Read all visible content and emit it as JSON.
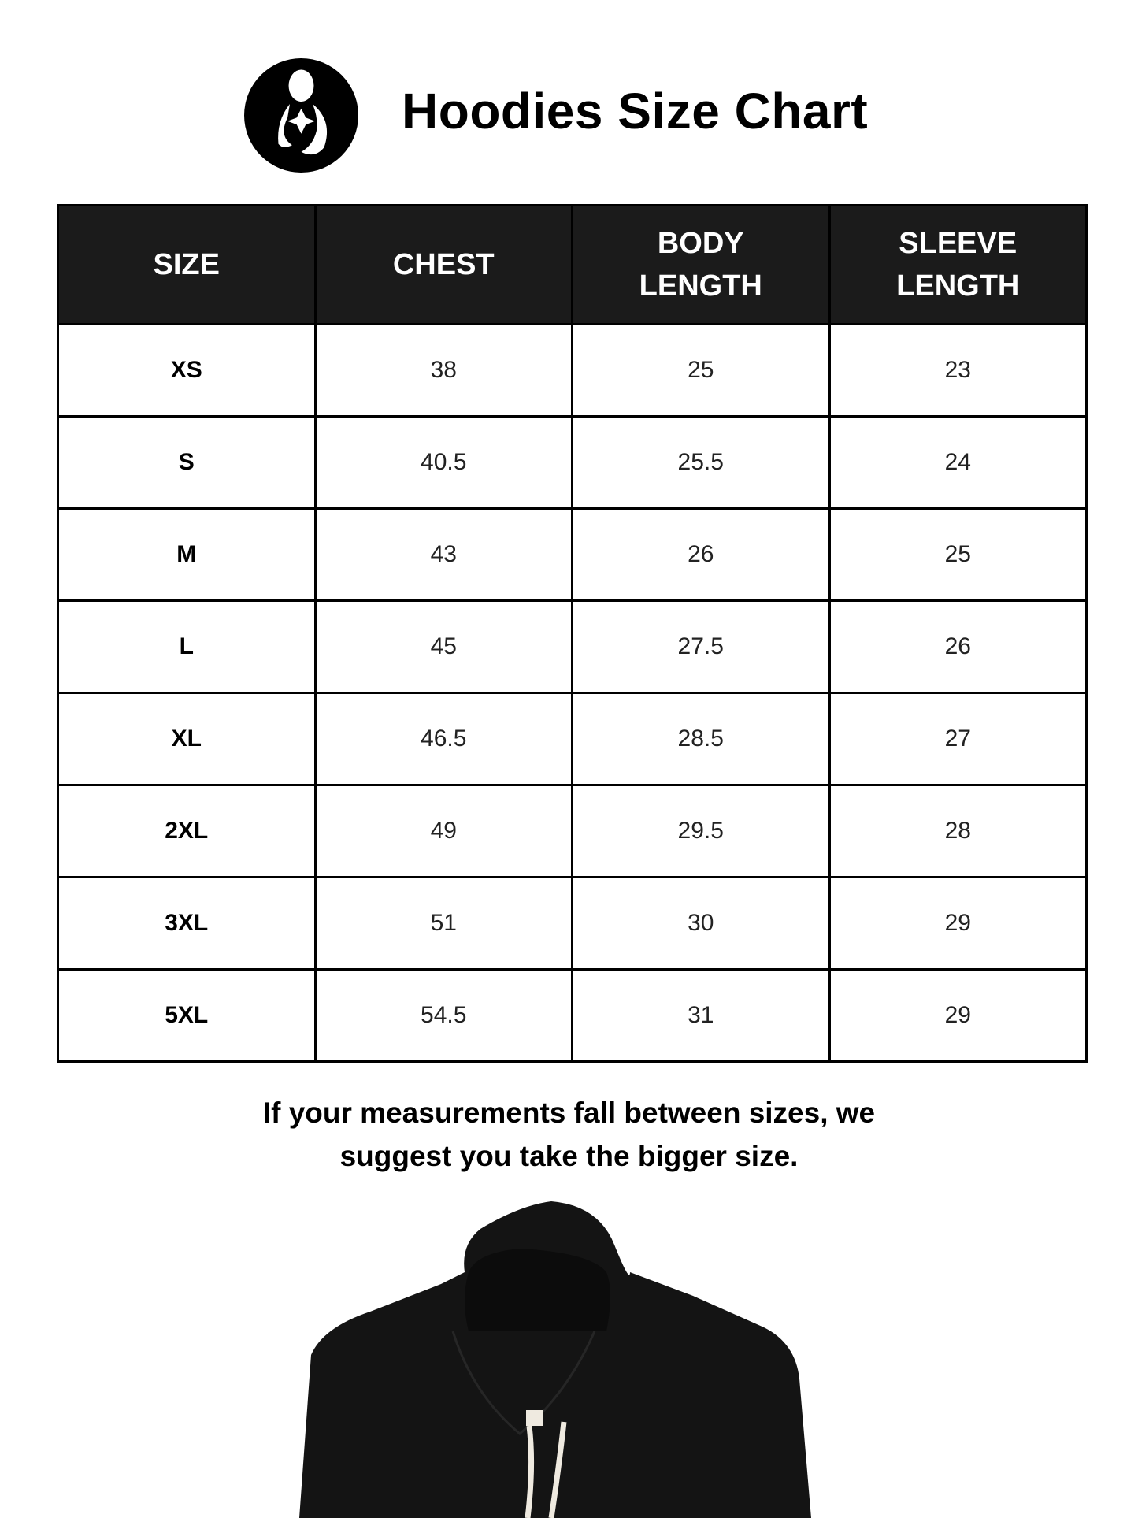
{
  "header": {
    "title": "Hoodies Size Chart",
    "logo": "mother-and-child-icon"
  },
  "table": {
    "columns": [
      {
        "line1": "SIZE",
        "line2": ""
      },
      {
        "line1": "CHEST",
        "line2": ""
      },
      {
        "line1": "BODY",
        "line2": "LENGTH"
      },
      {
        "line1": "SLEEVE",
        "line2": "LENGTH"
      }
    ],
    "rows": [
      [
        "XS",
        "38",
        "25",
        "23"
      ],
      [
        "S",
        "40.5",
        "25.5",
        "24"
      ],
      [
        "M",
        "43",
        "26",
        "25"
      ],
      [
        "L",
        "45",
        "27.5",
        "26"
      ],
      [
        "XL",
        "46.5",
        "28.5",
        "27"
      ],
      [
        "2XL",
        "49",
        "29.5",
        "28"
      ],
      [
        "3XL",
        "51",
        "30",
        "29"
      ],
      [
        "5XL",
        "54.5",
        "31",
        "29"
      ]
    ]
  },
  "note": {
    "line1": "If your measurements fall between sizes, we",
    "line2": "suggest you take the bigger size."
  },
  "colors": {
    "header_bg": "#1b1b1b",
    "garment": "#141414",
    "drawstring": "#efeae0"
  }
}
